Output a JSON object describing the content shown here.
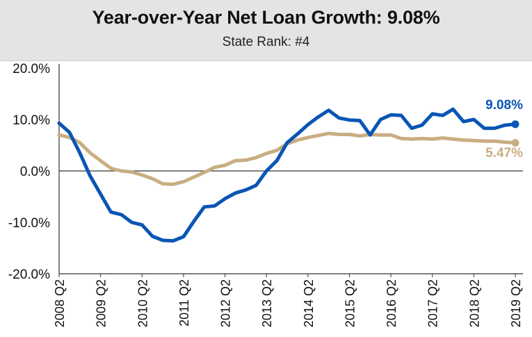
{
  "header": {
    "title": "Year-over-Year Net Loan Growth: 9.08%",
    "subtitle": "State Rank: #4"
  },
  "chart_data": {
    "type": "line",
    "title": "Year-over-Year Net Loan Growth: 9.08%",
    "subtitle": "State Rank: #4",
    "xlabel": "",
    "ylabel": "",
    "ylim": [
      -20,
      20
    ],
    "y_ticks": [
      "20.0%",
      "10.0%",
      "0.0%",
      "-10.0%",
      "-20.0%"
    ],
    "y_tick_values": [
      20,
      10,
      0,
      -10,
      -20
    ],
    "x": [
      "2008 Q2",
      "2008 Q3",
      "2008 Q4",
      "2009 Q1",
      "2009 Q2",
      "2009 Q3",
      "2009 Q4",
      "2010 Q1",
      "2010 Q2",
      "2010 Q3",
      "2010 Q4",
      "2011 Q1",
      "2011 Q2",
      "2011 Q3",
      "2011 Q4",
      "2012 Q1",
      "2012 Q2",
      "2012 Q3",
      "2012 Q4",
      "2013 Q1",
      "2013 Q2",
      "2013 Q3",
      "2013 Q4",
      "2014 Q1",
      "2014 Q2",
      "2014 Q3",
      "2014 Q4",
      "2015 Q1",
      "2015 Q2",
      "2015 Q3",
      "2015 Q4",
      "2016 Q1",
      "2016 Q2",
      "2016 Q3",
      "2016 Q4",
      "2017 Q1",
      "2017 Q2",
      "2017 Q3",
      "2017 Q4",
      "2018 Q1",
      "2018 Q2",
      "2018 Q3",
      "2018 Q4",
      "2019 Q1",
      "2019 Q2"
    ],
    "x_tick_labels": [
      "2008 Q2",
      "2009 Q2",
      "2010 Q2",
      "2011 Q2",
      "2012 Q2",
      "2013 Q2",
      "2014 Q2",
      "2015 Q2",
      "2016 Q2",
      "2017 Q2",
      "2018 Q2",
      "2019 Q2"
    ],
    "series": [
      {
        "color": "#0a55b5",
        "values": [
          9.3,
          7.5,
          3.5,
          -1.0,
          -4.5,
          -8.0,
          -8.5,
          -10.0,
          -10.5,
          -12.7,
          -13.5,
          -13.6,
          -12.8,
          -9.8,
          -7.0,
          -6.8,
          -5.4,
          -4.3,
          -3.7,
          -2.8,
          0.0,
          2.0,
          5.5,
          7.2,
          9.0,
          10.5,
          11.8,
          10.3,
          9.9,
          9.8,
          7.0,
          10.0,
          10.9,
          10.8,
          8.3,
          8.9,
          11.1,
          10.8,
          12.0,
          9.6,
          10.0,
          8.3,
          8.3,
          8.9,
          9.08
        ],
        "end_label": "9.08%"
      },
      {
        "color": "#c9ae82",
        "values": [
          7.0,
          6.5,
          5.5,
          3.5,
          2.0,
          0.5,
          0.0,
          -0.2,
          -0.8,
          -1.5,
          -2.5,
          -2.6,
          -2.1,
          -1.2,
          -0.3,
          0.7,
          1.1,
          2.0,
          2.1,
          2.6,
          3.4,
          4.0,
          5.3,
          6.0,
          6.5,
          6.9,
          7.3,
          7.1,
          7.1,
          6.8,
          7.1,
          7.0,
          7.0,
          6.3,
          6.2,
          6.3,
          6.2,
          6.4,
          6.2,
          6.0,
          5.9,
          5.8,
          5.8,
          5.6,
          5.47
        ],
        "end_label": "5.47%"
      }
    ],
    "grid": false,
    "legend": "none"
  }
}
